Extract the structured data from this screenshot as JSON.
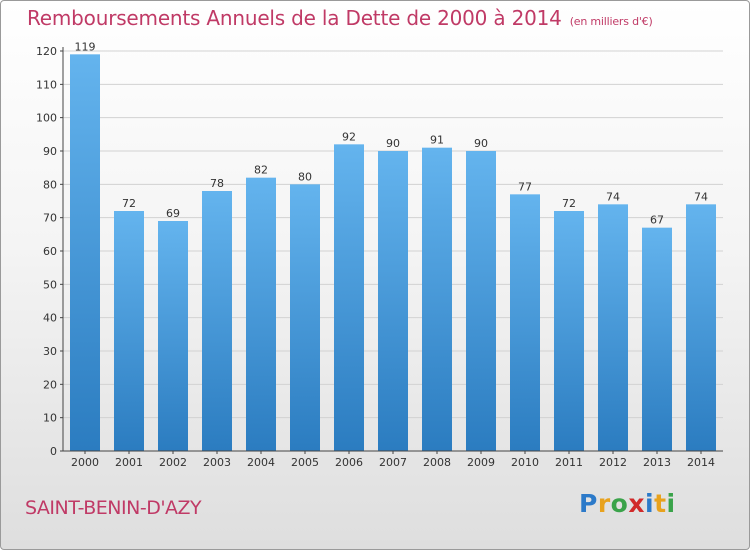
{
  "title": "Remboursements Annuels de la Dette de 2000 à 2014",
  "subtitle": "(en milliers d'€)",
  "city": "SAINT-BENIN-D'AZY",
  "logo": {
    "text": "Proxiti",
    "colors": [
      "#2c7ac9",
      "#e8a21d",
      "#3aa34a",
      "#d12a2a",
      "#2c7ac9",
      "#e8a21d",
      "#3aa34a"
    ]
  },
  "colors": {
    "bar_light": "#64b4ee",
    "bar_dark": "#2b7cc0",
    "grid": "#d2d2d2",
    "text": "#333333"
  },
  "chart_data": {
    "type": "bar",
    "categories": [
      "2000",
      "2001",
      "2002",
      "2003",
      "2004",
      "2005",
      "2006",
      "2007",
      "2008",
      "2009",
      "2010",
      "2011",
      "2012",
      "2013",
      "2014"
    ],
    "values": [
      119,
      72,
      69,
      78,
      82,
      80,
      92,
      90,
      91,
      90,
      77,
      72,
      74,
      67,
      74
    ],
    "title": "Remboursements Annuels de la Dette de 2000 à 2014",
    "ylim": [
      0,
      120
    ],
    "yticks": [
      0,
      10,
      20,
      30,
      40,
      50,
      60,
      70,
      80,
      90,
      100,
      110,
      120
    ],
    "grid": true,
    "data_labels": true
  }
}
